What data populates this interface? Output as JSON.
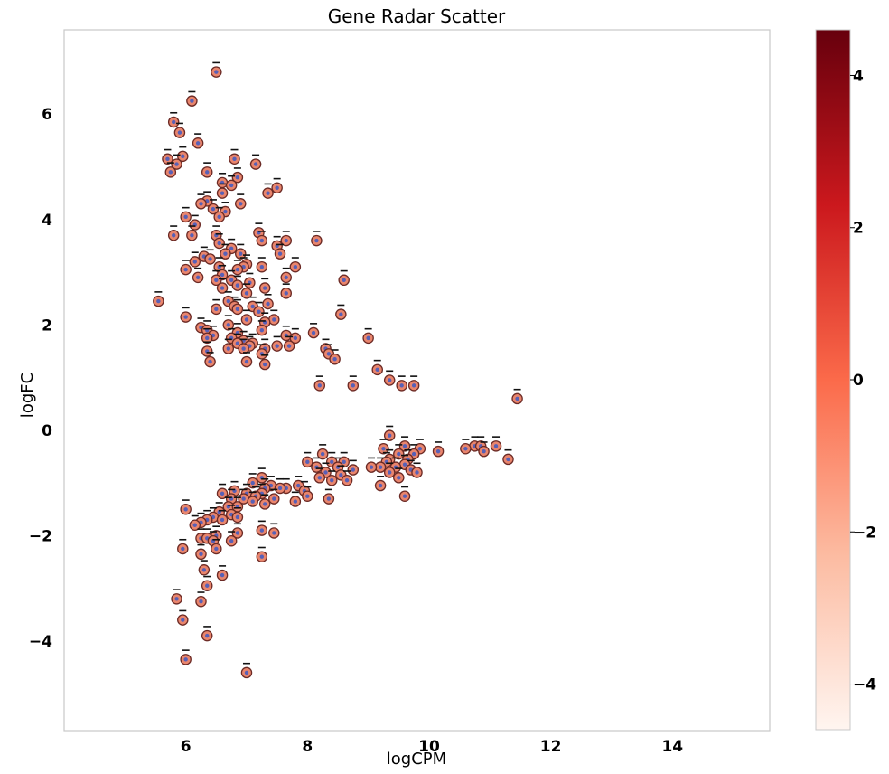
{
  "chart_data": {
    "type": "scatter",
    "title": "Gene Radar Scatter",
    "xlabel": "logCPM",
    "ylabel": "logFC",
    "xlim": [
      4.0,
      15.6
    ],
    "ylim": [
      -5.7,
      7.6
    ],
    "xticks": [
      6,
      8,
      10,
      12,
      14
    ],
    "yticks": [
      -4,
      -2,
      0,
      2,
      4,
      6
    ],
    "colorbar": {
      "range": [
        -4.6,
        4.6
      ],
      "ticks": [
        -4,
        -2,
        0,
        2,
        4
      ],
      "colormap": "Reds",
      "colors": [
        "#fff5f0",
        "#fcbba1",
        "#fb6a4a",
        "#cb181d",
        "#67000d"
      ]
    },
    "marker": {
      "face_color": "#e9856d",
      "edge_color": "#6b2a25",
      "center_color": "#5860b6"
    },
    "grid": false,
    "points": [
      [
        6.5,
        6.8
      ],
      [
        6.1,
        6.25
      ],
      [
        5.8,
        5.85
      ],
      [
        5.9,
        5.65
      ],
      [
        6.2,
        5.45
      ],
      [
        5.95,
        5.2
      ],
      [
        5.7,
        5.15
      ],
      [
        5.85,
        5.05
      ],
      [
        6.8,
        5.15
      ],
      [
        7.15,
        5.05
      ],
      [
        5.75,
        4.9
      ],
      [
        6.35,
        4.9
      ],
      [
        6.85,
        4.8
      ],
      [
        6.6,
        4.7
      ],
      [
        6.75,
        4.65
      ],
      [
        7.5,
        4.6
      ],
      [
        7.35,
        4.5
      ],
      [
        6.6,
        4.5
      ],
      [
        6.35,
        4.35
      ],
      [
        6.25,
        4.3
      ],
      [
        6.9,
        4.3
      ],
      [
        6.45,
        4.2
      ],
      [
        6.65,
        4.15
      ],
      [
        6.55,
        4.05
      ],
      [
        6.0,
        4.05
      ],
      [
        6.15,
        3.9
      ],
      [
        7.2,
        3.75
      ],
      [
        6.5,
        3.7
      ],
      [
        5.8,
        3.7
      ],
      [
        6.1,
        3.7
      ],
      [
        7.25,
        3.6
      ],
      [
        7.65,
        3.6
      ],
      [
        8.15,
        3.6
      ],
      [
        6.55,
        3.55
      ],
      [
        7.5,
        3.5
      ],
      [
        6.75,
        3.45
      ],
      [
        6.65,
        3.35
      ],
      [
        6.9,
        3.35
      ],
      [
        7.55,
        3.35
      ],
      [
        6.3,
        3.3
      ],
      [
        6.4,
        3.25
      ],
      [
        6.15,
        3.2
      ],
      [
        7.0,
        3.15
      ],
      [
        6.95,
        3.1
      ],
      [
        7.25,
        3.1
      ],
      [
        6.55,
        3.1
      ],
      [
        7.8,
        3.1
      ],
      [
        6.0,
        3.05
      ],
      [
        6.85,
        3.05
      ],
      [
        6.6,
        2.95
      ],
      [
        6.2,
        2.9
      ],
      [
        7.65,
        2.9
      ],
      [
        6.5,
        2.85
      ],
      [
        6.75,
        2.85
      ],
      [
        8.6,
        2.85
      ],
      [
        7.05,
        2.8
      ],
      [
        6.85,
        2.75
      ],
      [
        6.6,
        2.7
      ],
      [
        7.3,
        2.7
      ],
      [
        7.0,
        2.6
      ],
      [
        7.65,
        2.6
      ],
      [
        5.55,
        2.45
      ],
      [
        6.7,
        2.45
      ],
      [
        7.35,
        2.4
      ],
      [
        6.8,
        2.35
      ],
      [
        7.1,
        2.35
      ],
      [
        6.5,
        2.3
      ],
      [
        6.85,
        2.3
      ],
      [
        7.2,
        2.25
      ],
      [
        8.55,
        2.2
      ],
      [
        6.0,
        2.15
      ],
      [
        7.0,
        2.1
      ],
      [
        7.45,
        2.1
      ],
      [
        7.3,
        2.05
      ],
      [
        6.7,
        2.0
      ],
      [
        6.25,
        1.95
      ],
      [
        6.35,
        1.9
      ],
      [
        7.25,
        1.9
      ],
      [
        6.85,
        1.85
      ],
      [
        8.1,
        1.85
      ],
      [
        6.45,
        1.8
      ],
      [
        7.65,
        1.8
      ],
      [
        7.8,
        1.75
      ],
      [
        6.75,
        1.75
      ],
      [
        6.35,
        1.75
      ],
      [
        9.0,
        1.75
      ],
      [
        6.95,
        1.7
      ],
      [
        6.85,
        1.65
      ],
      [
        7.1,
        1.65
      ],
      [
        7.05,
        1.6
      ],
      [
        7.5,
        1.6
      ],
      [
        7.7,
        1.6
      ],
      [
        6.95,
        1.55
      ],
      [
        7.3,
        1.55
      ],
      [
        6.7,
        1.55
      ],
      [
        8.3,
        1.55
      ],
      [
        8.35,
        1.45
      ],
      [
        6.35,
        1.5
      ],
      [
        7.25,
        1.45
      ],
      [
        8.45,
        1.35
      ],
      [
        6.4,
        1.3
      ],
      [
        7.0,
        1.3
      ],
      [
        7.3,
        1.25
      ],
      [
        9.15,
        1.15
      ],
      [
        9.35,
        0.95
      ],
      [
        8.2,
        0.85
      ],
      [
        8.75,
        0.85
      ],
      [
        9.55,
        0.85
      ],
      [
        9.75,
        0.85
      ],
      [
        11.45,
        0.6
      ],
      [
        9.35,
        -0.1
      ],
      [
        9.6,
        -0.3
      ],
      [
        9.25,
        -0.35
      ],
      [
        10.75,
        -0.3
      ],
      [
        10.85,
        -0.3
      ],
      [
        11.1,
        -0.3
      ],
      [
        9.85,
        -0.35
      ],
      [
        10.6,
        -0.35
      ],
      [
        10.9,
        -0.4
      ],
      [
        10.15,
        -0.4
      ],
      [
        9.5,
        -0.45
      ],
      [
        8.25,
        -0.45
      ],
      [
        9.35,
        -0.55
      ],
      [
        9.75,
        -0.45
      ],
      [
        9.65,
        -0.55
      ],
      [
        11.3,
        -0.55
      ],
      [
        9.3,
        -0.6
      ],
      [
        8.0,
        -0.6
      ],
      [
        8.4,
        -0.6
      ],
      [
        8.6,
        -0.6
      ],
      [
        9.6,
        -0.65
      ],
      [
        8.15,
        -0.7
      ],
      [
        8.5,
        -0.7
      ],
      [
        9.45,
        -0.7
      ],
      [
        9.2,
        -0.7
      ],
      [
        9.05,
        -0.7
      ],
      [
        9.7,
        -0.75
      ],
      [
        8.75,
        -0.75
      ],
      [
        8.3,
        -0.8
      ],
      [
        9.35,
        -0.8
      ],
      [
        9.8,
        -0.8
      ],
      [
        8.55,
        -0.85
      ],
      [
        8.2,
        -0.9
      ],
      [
        7.25,
        -0.9
      ],
      [
        9.5,
        -0.9
      ],
      [
        8.65,
        -0.95
      ],
      [
        8.4,
        -0.95
      ],
      [
        7.1,
        -1.0
      ],
      [
        9.2,
        -1.05
      ],
      [
        7.4,
        -1.05
      ],
      [
        7.85,
        -1.05
      ],
      [
        7.65,
        -1.1
      ],
      [
        7.55,
        -1.1
      ],
      [
        7.3,
        -1.1
      ],
      [
        7.95,
        -1.15
      ],
      [
        6.8,
        -1.15
      ],
      [
        7.25,
        -1.2
      ],
      [
        7.0,
        -1.2
      ],
      [
        7.15,
        -1.25
      ],
      [
        6.6,
        -1.2
      ],
      [
        9.6,
        -1.25
      ],
      [
        8.0,
        -1.25
      ],
      [
        8.35,
        -1.3
      ],
      [
        6.95,
        -1.3
      ],
      [
        6.75,
        -1.3
      ],
      [
        7.45,
        -1.3
      ],
      [
        7.1,
        -1.35
      ],
      [
        7.3,
        -1.4
      ],
      [
        7.8,
        -1.35
      ],
      [
        6.7,
        -1.45
      ],
      [
        6.85,
        -1.45
      ],
      [
        6.0,
        -1.5
      ],
      [
        6.55,
        -1.55
      ],
      [
        6.75,
        -1.6
      ],
      [
        6.85,
        -1.65
      ],
      [
        6.45,
        -1.65
      ],
      [
        6.35,
        -1.7
      ],
      [
        6.6,
        -1.7
      ],
      [
        6.25,
        -1.75
      ],
      [
        6.15,
        -1.8
      ],
      [
        7.25,
        -1.9
      ],
      [
        6.85,
        -1.95
      ],
      [
        7.45,
        -1.95
      ],
      [
        6.5,
        -2.0
      ],
      [
        6.25,
        -2.05
      ],
      [
        6.35,
        -2.05
      ],
      [
        6.75,
        -2.1
      ],
      [
        6.45,
        -2.1
      ],
      [
        5.95,
        -2.25
      ],
      [
        6.5,
        -2.25
      ],
      [
        6.25,
        -2.35
      ],
      [
        7.25,
        -2.4
      ],
      [
        6.3,
        -2.65
      ],
      [
        6.6,
        -2.75
      ],
      [
        6.35,
        -2.95
      ],
      [
        5.85,
        -3.2
      ],
      [
        6.25,
        -3.25
      ],
      [
        5.95,
        -3.6
      ],
      [
        6.35,
        -3.9
      ],
      [
        6.0,
        -4.35
      ],
      [
        7.0,
        -4.6
      ]
    ]
  }
}
